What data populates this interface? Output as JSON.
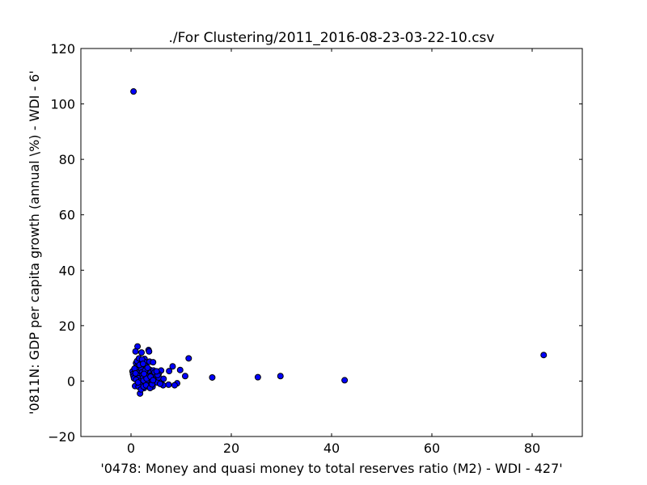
{
  "chart_data": {
    "type": "scatter",
    "title": "./For Clustering/2011_2016-08-23-03-22-10.csv",
    "xlabel": "'0478: Money and quasi money  to total reserves ratio (M2) - WDI - 427'",
    "ylabel": "'0811N: GDP per capita growth  (annual \\%) - WDI - 6'",
    "xlim": [
      -10,
      90
    ],
    "ylim": [
      -20,
      120
    ],
    "xticks": [
      0,
      20,
      40,
      60,
      80
    ],
    "yticks": [
      -20,
      0,
      20,
      40,
      60,
      80,
      100,
      120
    ],
    "xtick_labels": [
      "0",
      "20",
      "40",
      "60",
      "80"
    ],
    "ytick_labels": [
      "−20",
      "0",
      "20",
      "40",
      "60",
      "80",
      "100",
      "120"
    ],
    "grid": false,
    "marker_color": "#0000ff",
    "series": [
      {
        "points": [
          [
            0.5,
            104.5
          ],
          [
            1.3,
            12.5
          ],
          [
            0.9,
            10.7
          ],
          [
            2.1,
            10.3
          ],
          [
            3.5,
            11.2
          ],
          [
            3.6,
            10.7
          ],
          [
            11.5,
            8.2
          ],
          [
            8.3,
            5.3
          ],
          [
            7.6,
            3.6
          ],
          [
            9.8,
            4.0
          ],
          [
            10.8,
            1.8
          ],
          [
            16.2,
            1.3
          ],
          [
            25.3,
            1.4
          ],
          [
            29.8,
            1.8
          ],
          [
            42.6,
            0.3
          ],
          [
            82.3,
            9.4
          ],
          [
            9.2,
            -0.8
          ],
          [
            8.7,
            -1.5
          ],
          [
            7.5,
            -1.3
          ],
          [
            6.2,
            0.5
          ],
          [
            6.0,
            3.8
          ],
          [
            5.5,
            2.5
          ],
          [
            6.4,
            -1.5
          ],
          [
            1.8,
            -4.5
          ],
          [
            0.3,
            3.5
          ],
          [
            0.4,
            2.5
          ],
          [
            0.5,
            1.8
          ],
          [
            0.6,
            1.0
          ],
          [
            0.8,
            -1.8
          ],
          [
            1.0,
            6.5
          ],
          [
            1.1,
            5.0
          ],
          [
            1.2,
            4.0
          ],
          [
            1.3,
            3.0
          ],
          [
            1.4,
            2.0
          ],
          [
            1.5,
            1.0
          ],
          [
            1.6,
            0.0
          ],
          [
            1.7,
            -1.0
          ],
          [
            1.8,
            7.5
          ],
          [
            1.9,
            6.0
          ],
          [
            2.0,
            5.2
          ],
          [
            2.1,
            4.2
          ],
          [
            2.2,
            3.2
          ],
          [
            2.3,
            2.2
          ],
          [
            2.4,
            1.2
          ],
          [
            2.5,
            0.2
          ],
          [
            2.6,
            -2.5
          ],
          [
            2.7,
            8.0
          ],
          [
            2.8,
            6.8
          ],
          [
            2.9,
            5.5
          ],
          [
            3.0,
            4.5
          ],
          [
            3.1,
            3.5
          ],
          [
            3.2,
            2.5
          ],
          [
            3.3,
            1.5
          ],
          [
            3.4,
            0.5
          ],
          [
            3.5,
            -0.5
          ],
          [
            3.6,
            -1.5
          ],
          [
            3.7,
            7.0
          ],
          [
            3.8,
            4.0
          ],
          [
            3.9,
            3.0
          ],
          [
            4.0,
            2.0
          ],
          [
            4.1,
            1.0
          ],
          [
            4.2,
            0.0
          ],
          [
            4.3,
            -2.0
          ],
          [
            4.4,
            6.8
          ],
          [
            4.5,
            3.8
          ],
          [
            4.6,
            2.8
          ],
          [
            4.8,
            1.8
          ],
          [
            5.0,
            0.8
          ],
          [
            5.2,
            -0.5
          ],
          [
            5.5,
            1.3
          ],
          [
            5.8,
            -1.0
          ],
          [
            1.0,
            0.5
          ],
          [
            1.5,
            -2.0
          ],
          [
            2.0,
            -3.0
          ],
          [
            2.5,
            -2.0
          ],
          [
            3.0,
            -1.5
          ],
          [
            3.8,
            -2.5
          ],
          [
            4.2,
            -1.2
          ],
          [
            0.7,
            4.5
          ],
          [
            1.2,
            7.2
          ],
          [
            1.6,
            8.2
          ],
          [
            2.2,
            7.8
          ],
          [
            2.8,
            3.8
          ],
          [
            3.3,
            4.8
          ],
          [
            4.7,
            3.2
          ],
          [
            5.3,
            2.2
          ],
          [
            0.9,
            2.8
          ],
          [
            1.7,
            5.8
          ],
          [
            2.4,
            6.2
          ],
          [
            3.1,
            0.9
          ],
          [
            3.9,
            1.6
          ],
          [
            4.4,
            0.3
          ],
          [
            5.1,
            3.5
          ],
          [
            6.5,
            0.8
          ],
          [
            2.6,
            2.6
          ],
          [
            1.4,
            -0.5
          ]
        ]
      }
    ]
  }
}
